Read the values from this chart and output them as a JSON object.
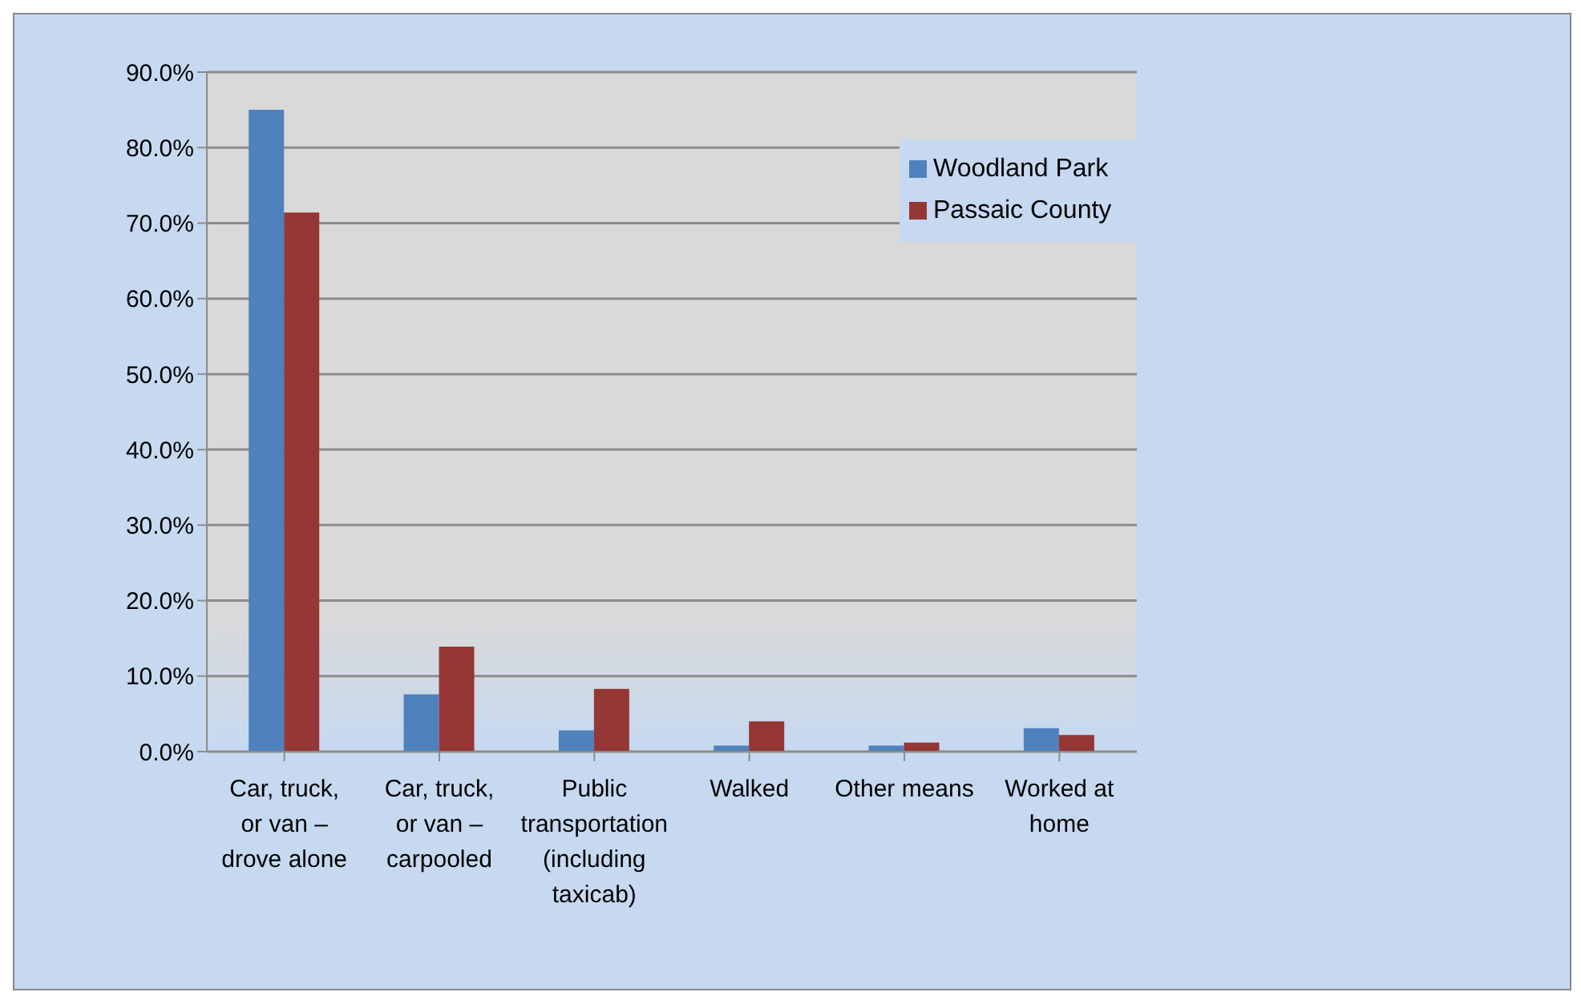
{
  "chart_data": {
    "type": "bar",
    "categories": [
      "Car, truck, or van – drove alone",
      "Car, truck, or van – carpooled",
      "Public transportation (including taxicab)",
      "Walked",
      "Other means",
      "Worked at home"
    ],
    "series": [
      {
        "name": "Woodland Park",
        "color": "#4f81bd",
        "values": [
          85.0,
          7.6,
          2.8,
          0.8,
          0.8,
          3.1
        ]
      },
      {
        "name": "Passaic County",
        "color": "#953735",
        "values": [
          71.4,
          13.9,
          8.3,
          4.0,
          1.2,
          2.2
        ]
      }
    ],
    "ylim": [
      0,
      90
    ],
    "yticks": [
      {
        "value": 0,
        "label": "0.0%"
      },
      {
        "value": 10,
        "label": "10.0%"
      },
      {
        "value": 20,
        "label": "20.0%"
      },
      {
        "value": 30,
        "label": "30.0%"
      },
      {
        "value": 40,
        "label": "40.0%"
      },
      {
        "value": 50,
        "label": "50.0%"
      },
      {
        "value": 60,
        "label": "60.0%"
      },
      {
        "value": 70,
        "label": "70.0%"
      },
      {
        "value": 80,
        "label": "80.0%"
      },
      {
        "value": 90,
        "label": "90.0%"
      }
    ],
    "grid": "y",
    "legend": "top right"
  }
}
